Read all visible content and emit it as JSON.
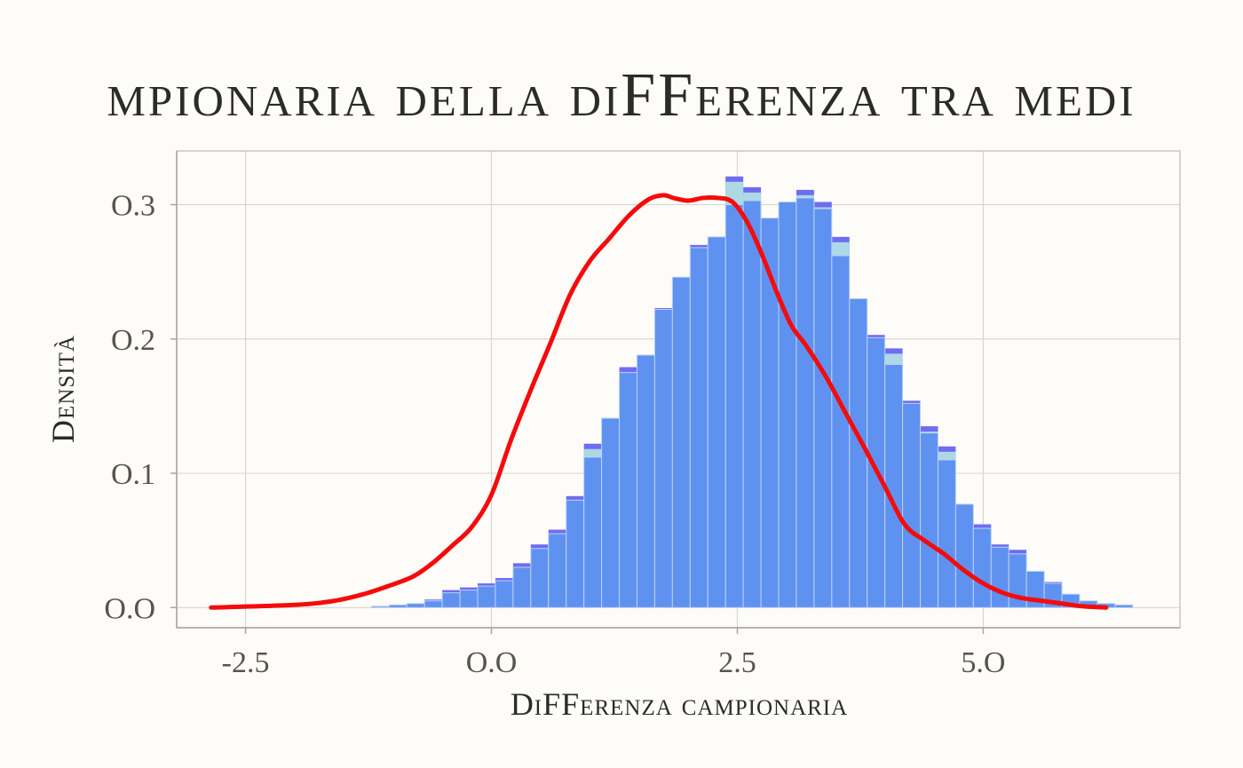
{
  "chart_data": {
    "type": "bar",
    "title": "mpionaria della diFFerenza tra medi",
    "xlabel": "DiFFerenza campionaria",
    "ylabel": "Densità",
    "xlim": [
      -3.2,
      7.0
    ],
    "ylim": [
      -0.015,
      0.34
    ],
    "x_ticks": [
      -2.5,
      0.0,
      2.5,
      5.0
    ],
    "x_tick_labels": [
      "-2.5",
      "O.O",
      "2.5",
      "5.O"
    ],
    "y_ticks": [
      0.0,
      0.1,
      0.2,
      0.3
    ],
    "y_tick_labels": [
      "O.O",
      "O.1",
      "O.2",
      "O.3"
    ],
    "grid": true,
    "bin_width": 0.18,
    "bin_start": -2.3,
    "series": [
      {
        "type": "histogram",
        "values": [
          0,
          0,
          0,
          0,
          0,
          0,
          0.001,
          0.002,
          0.003,
          0.006,
          0.013,
          0.015,
          0.018,
          0.022,
          0.033,
          0.047,
          0.058,
          0.083,
          0.122,
          0.141,
          0.179,
          0.188,
          0.223,
          0.246,
          0.27,
          0.276,
          0.321,
          0.313,
          0.29,
          0.302,
          0.311,
          0.302,
          0.276,
          0.23,
          0.203,
          0.193,
          0.154,
          0.135,
          0.12,
          0.077,
          0.062,
          0.047,
          0.043,
          0.027,
          0.019,
          0.01,
          0.005,
          0.003,
          0.002
        ]
      },
      {
        "type": "overlay-histogram",
        "values": [
          0,
          0,
          0,
          0,
          0,
          0,
          0.001,
          0.002,
          0.003,
          0.005,
          0.011,
          0.013,
          0.016,
          0.02,
          0.03,
          0.044,
          0.055,
          0.08,
          0.112,
          0.141,
          0.175,
          0.188,
          0.222,
          0.246,
          0.268,
          0.276,
          0.3,
          0.303,
          0.29,
          0.302,
          0.305,
          0.297,
          0.262,
          0.23,
          0.201,
          0.181,
          0.152,
          0.13,
          0.11,
          0.077,
          0.059,
          0.045,
          0.04,
          0.027,
          0.018,
          0.01,
          0.005,
          0.003,
          0.002
        ]
      },
      {
        "type": "density",
        "x": [
          -2.85,
          -2.0,
          -1.6,
          -1.3,
          -1.05,
          -0.8,
          -0.6,
          -0.4,
          -0.2,
          0.0,
          0.2,
          0.4,
          0.6,
          0.8,
          1.0,
          1.2,
          1.4,
          1.6,
          1.75,
          1.85,
          2.0,
          2.15,
          2.3,
          2.45,
          2.6,
          2.75,
          2.9,
          3.05,
          3.2,
          3.4,
          3.6,
          3.8,
          4.0,
          4.2,
          4.4,
          4.6,
          4.8,
          5.0,
          5.2,
          5.4,
          5.6,
          5.8,
          6.0,
          6.25
        ],
        "y": [
          0.0,
          0.002,
          0.005,
          0.01,
          0.016,
          0.023,
          0.033,
          0.046,
          0.06,
          0.084,
          0.125,
          0.162,
          0.197,
          0.233,
          0.258,
          0.275,
          0.292,
          0.304,
          0.307,
          0.305,
          0.303,
          0.305,
          0.305,
          0.302,
          0.287,
          0.263,
          0.235,
          0.21,
          0.195,
          0.172,
          0.145,
          0.118,
          0.09,
          0.062,
          0.05,
          0.04,
          0.028,
          0.018,
          0.011,
          0.007,
          0.005,
          0.003,
          0.001,
          0.0
        ]
      }
    ],
    "colors": {
      "histogram": "#6f6cf2",
      "histogram_pale": "#add8e6",
      "overlay": "#5f92f0",
      "density": "#f50b0b",
      "background": "#fdfcf9",
      "grid": "#d9d7d3"
    }
  }
}
